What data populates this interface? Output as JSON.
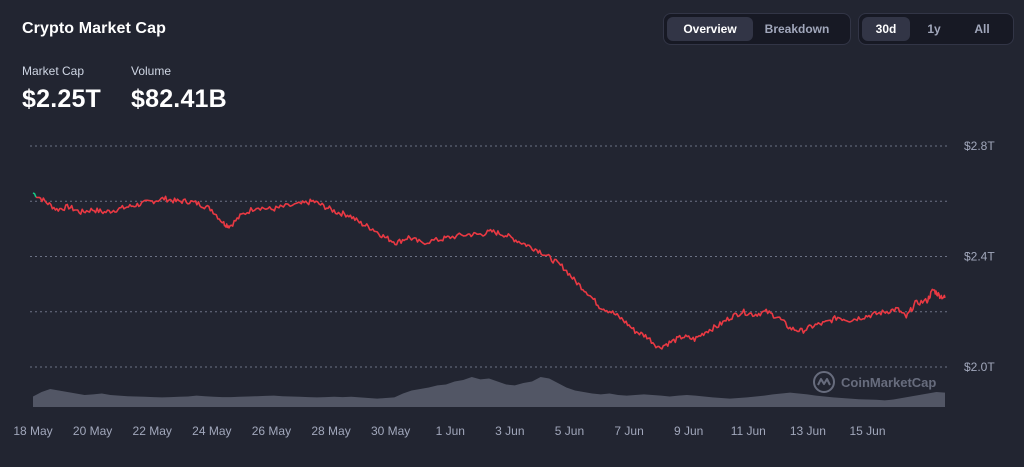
{
  "header": {
    "title": "Crypto Market Cap"
  },
  "view_tabs": [
    {
      "label": "Overview",
      "active": true
    },
    {
      "label": "Breakdown",
      "active": false
    }
  ],
  "range_tabs": [
    {
      "label": "30d",
      "active": true
    },
    {
      "label": "1y",
      "active": false
    },
    {
      "label": "All",
      "active": false
    }
  ],
  "stats": {
    "market_cap_label": "Market Cap",
    "market_cap_value": "$2.25T",
    "volume_label": "Volume",
    "volume_value": "$82.41B"
  },
  "watermark": {
    "text": "CoinMarketCap",
    "icon": "coinmarketcap-logo-icon"
  },
  "colors": {
    "background": "#222531",
    "line": "#ea3943",
    "line_start": "#16c784",
    "grid": "#858ca2",
    "volume": "#5b5f6e",
    "text_muted": "#a1a7bb"
  },
  "chart_data": {
    "type": "line",
    "title": "",
    "xlabel": "",
    "ylabel": "",
    "y_unit": "T",
    "y_ticks": [
      "$2.8T",
      "$2.4T",
      "$2.0T"
    ],
    "y_tick_values": [
      2.8,
      2.4,
      2.0
    ],
    "ylim": [
      2.0,
      2.8
    ],
    "grid": true,
    "x_ticks": [
      "18 May",
      "20 May",
      "22 May",
      "24 May",
      "26 May",
      "28 May",
      "30 May",
      "1 Jun",
      "3 Jun",
      "5 Jun",
      "7 Jun",
      "9 Jun",
      "11 Jun",
      "13 Jun",
      "15 Jun"
    ],
    "xlim_days": [
      0,
      30.6
    ],
    "series": [
      {
        "values": [
          [
            0.0,
            2.63
          ],
          [
            0.4,
            2.6
          ],
          [
            0.8,
            2.57
          ],
          [
            1.2,
            2.58
          ],
          [
            1.6,
            2.56
          ],
          [
            2.0,
            2.57
          ],
          [
            2.4,
            2.56
          ],
          [
            2.8,
            2.57
          ],
          [
            3.2,
            2.58
          ],
          [
            3.6,
            2.59
          ],
          [
            4.0,
            2.6
          ],
          [
            4.4,
            2.61
          ],
          [
            4.8,
            2.6
          ],
          [
            5.2,
            2.6
          ],
          [
            5.6,
            2.59
          ],
          [
            6.0,
            2.57
          ],
          [
            6.4,
            2.52
          ],
          [
            6.6,
            2.51
          ],
          [
            7.0,
            2.55
          ],
          [
            7.5,
            2.58
          ],
          [
            8.0,
            2.57
          ],
          [
            8.4,
            2.58
          ],
          [
            9.0,
            2.59
          ],
          [
            9.4,
            2.6
          ],
          [
            9.8,
            2.58
          ],
          [
            10.2,
            2.56
          ],
          [
            10.6,
            2.55
          ],
          [
            11.0,
            2.52
          ],
          [
            11.4,
            2.5
          ],
          [
            11.8,
            2.47
          ],
          [
            12.2,
            2.45
          ],
          [
            12.6,
            2.47
          ],
          [
            13.0,
            2.45
          ],
          [
            13.6,
            2.46
          ],
          [
            14.0,
            2.47
          ],
          [
            14.6,
            2.48
          ],
          [
            15.0,
            2.48
          ],
          [
            15.4,
            2.49
          ],
          [
            15.8,
            2.48
          ],
          [
            16.2,
            2.46
          ],
          [
            16.6,
            2.44
          ],
          [
            17.0,
            2.42
          ],
          [
            17.4,
            2.39
          ],
          [
            17.8,
            2.36
          ],
          [
            18.2,
            2.31
          ],
          [
            18.6,
            2.27
          ],
          [
            19.0,
            2.22
          ],
          [
            19.4,
            2.2
          ],
          [
            19.8,
            2.17
          ],
          [
            20.2,
            2.13
          ],
          [
            20.6,
            2.11
          ],
          [
            21.0,
            2.07
          ],
          [
            21.4,
            2.09
          ],
          [
            21.8,
            2.11
          ],
          [
            22.2,
            2.1
          ],
          [
            22.6,
            2.13
          ],
          [
            23.0,
            2.15
          ],
          [
            23.4,
            2.18
          ],
          [
            23.8,
            2.2
          ],
          [
            24.2,
            2.19
          ],
          [
            24.6,
            2.2
          ],
          [
            25.0,
            2.18
          ],
          [
            25.4,
            2.14
          ],
          [
            25.8,
            2.13
          ],
          [
            26.2,
            2.15
          ],
          [
            26.6,
            2.16
          ],
          [
            27.0,
            2.18
          ],
          [
            27.4,
            2.17
          ],
          [
            27.8,
            2.18
          ],
          [
            28.2,
            2.19
          ],
          [
            28.6,
            2.2
          ],
          [
            29.0,
            2.21
          ],
          [
            29.3,
            2.18
          ],
          [
            29.6,
            2.23
          ],
          [
            30.0,
            2.24
          ],
          [
            30.2,
            2.28
          ],
          [
            30.4,
            2.26
          ],
          [
            30.6,
            2.25
          ]
        ]
      }
    ],
    "volume_note": "shaded volume bars along the bottom of the plot",
    "volume_relative": [
      0.35,
      0.5,
      0.6,
      0.55,
      0.5,
      0.45,
      0.4,
      0.42,
      0.45,
      0.4,
      0.38,
      0.36,
      0.35,
      0.34,
      0.33,
      0.32,
      0.33,
      0.34,
      0.35,
      0.38,
      0.36,
      0.34,
      0.33,
      0.33,
      0.34,
      0.35,
      0.36,
      0.37,
      0.38,
      0.36,
      0.35,
      0.34,
      0.33,
      0.32,
      0.33,
      0.34,
      0.33,
      0.34,
      0.32,
      0.3,
      0.28,
      0.3,
      0.32,
      0.45,
      0.55,
      0.6,
      0.65,
      0.72,
      0.75,
      0.85,
      0.9,
      1.0,
      0.92,
      0.95,
      0.85,
      0.75,
      0.72,
      0.8,
      0.85,
      1.0,
      0.95,
      0.8,
      0.65,
      0.55,
      0.5,
      0.45,
      0.42,
      0.45,
      0.4,
      0.38,
      0.4,
      0.42,
      0.4,
      0.38,
      0.35,
      0.38,
      0.4,
      0.38,
      0.35,
      0.32,
      0.3,
      0.28,
      0.3,
      0.32,
      0.35,
      0.38,
      0.42,
      0.45,
      0.48,
      0.45,
      0.42,
      0.38,
      0.35,
      0.32,
      0.3,
      0.28,
      0.26,
      0.25,
      0.24,
      0.22,
      0.25,
      0.3,
      0.35,
      0.4,
      0.45,
      0.5,
      0.48
    ]
  }
}
